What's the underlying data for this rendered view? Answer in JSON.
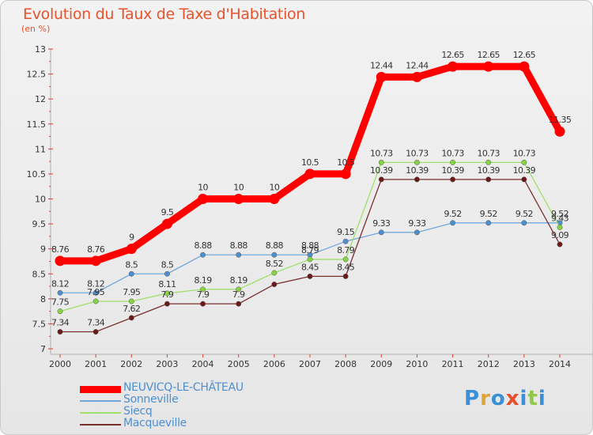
{
  "chart_data": {
    "type": "line",
    "title": "Evolution du Taux de Taxe d'Habitation",
    "ylabel": "(en %)",
    "xlabel": "",
    "ylim": [
      7,
      13
    ],
    "yticks": [
      "7",
      "7.5",
      "8",
      "8.5",
      "9",
      "9.5",
      "10",
      "10.5",
      "11",
      "11.5",
      "12",
      "12.5",
      "13"
    ],
    "x": [
      "2000",
      "2001",
      "2002",
      "2003",
      "2004",
      "2005",
      "2006",
      "2007",
      "2008",
      "2009",
      "2010",
      "2011",
      "2012",
      "2013",
      "2014"
    ],
    "series": [
      {
        "name": "Sonneville",
        "color": "#4e8fcf",
        "line_color": "#74a8dc",
        "values": [
          8.12,
          8.12,
          8.5,
          8.5,
          8.88,
          8.88,
          8.88,
          8.88,
          9.15,
          9.33,
          9.33,
          9.52,
          9.52,
          9.52,
          9.52
        ],
        "labels": [
          "8.12",
          "8.12",
          "8.5",
          "8.5",
          "8.88",
          "8.88",
          "8.88",
          "8.88",
          "9.15",
          "9.33",
          "9.33",
          "9.52",
          "9.52",
          "9.52",
          "9.52"
        ]
      },
      {
        "name": "Siecq",
        "color": "#86d444",
        "line_color": "#9ee06a",
        "values": [
          7.75,
          7.95,
          7.95,
          8.11,
          8.19,
          8.19,
          8.52,
          8.79,
          8.79,
          10.73,
          10.73,
          10.73,
          10.73,
          10.73,
          9.43
        ],
        "labels": [
          "7.75",
          "7.95",
          "7.95",
          "8.11",
          "8.19",
          "8.19",
          "8.52",
          "8.79",
          "8.79",
          "10.73",
          "10.73",
          "10.73",
          "10.73",
          "10.73",
          "9.43"
        ]
      },
      {
        "name": "Macqueville",
        "color": "#6b1a1a",
        "line_color": "#7a2f2f",
        "values": [
          7.34,
          7.34,
          7.62,
          7.9,
          7.9,
          7.9,
          8.29,
          8.45,
          8.45,
          10.39,
          10.39,
          10.39,
          10.39,
          10.39,
          9.09
        ],
        "labels": [
          "7.34",
          "7.34",
          "7.62",
          "7.9",
          "7.9",
          "7.9",
          "",
          "8.45",
          "8.45",
          "10.39",
          "10.39",
          "10.39",
          "10.39",
          "10.39",
          "9.09"
        ]
      },
      {
        "name": "NEUVICQ-LE-CHÂTEAU",
        "color": "#ff0000",
        "line_color": "#ff0000",
        "values": [
          8.76,
          8.76,
          9,
          9.5,
          10,
          10,
          10,
          10.5,
          10.5,
          12.44,
          12.44,
          12.65,
          12.65,
          12.65,
          11.35
        ],
        "labels": [
          "8.76",
          "8.76",
          "9",
          "9.5",
          "10",
          "10",
          "10",
          "10.5",
          "10.5",
          "12.44",
          "12.44",
          "12.65",
          "12.65",
          "12.65",
          "11.35"
        ]
      }
    ]
  },
  "legend": [
    {
      "label": "NEUVICQ-LE-CHÂTEAU",
      "color": "#ff0000"
    },
    {
      "label": "Sonneville",
      "color": "#74a8dc"
    },
    {
      "label": "Siecq",
      "color": "#9ee06a"
    },
    {
      "label": "Macqueville",
      "color": "#7a2f2f"
    }
  ],
  "logo": {
    "text": "Proxiti"
  }
}
